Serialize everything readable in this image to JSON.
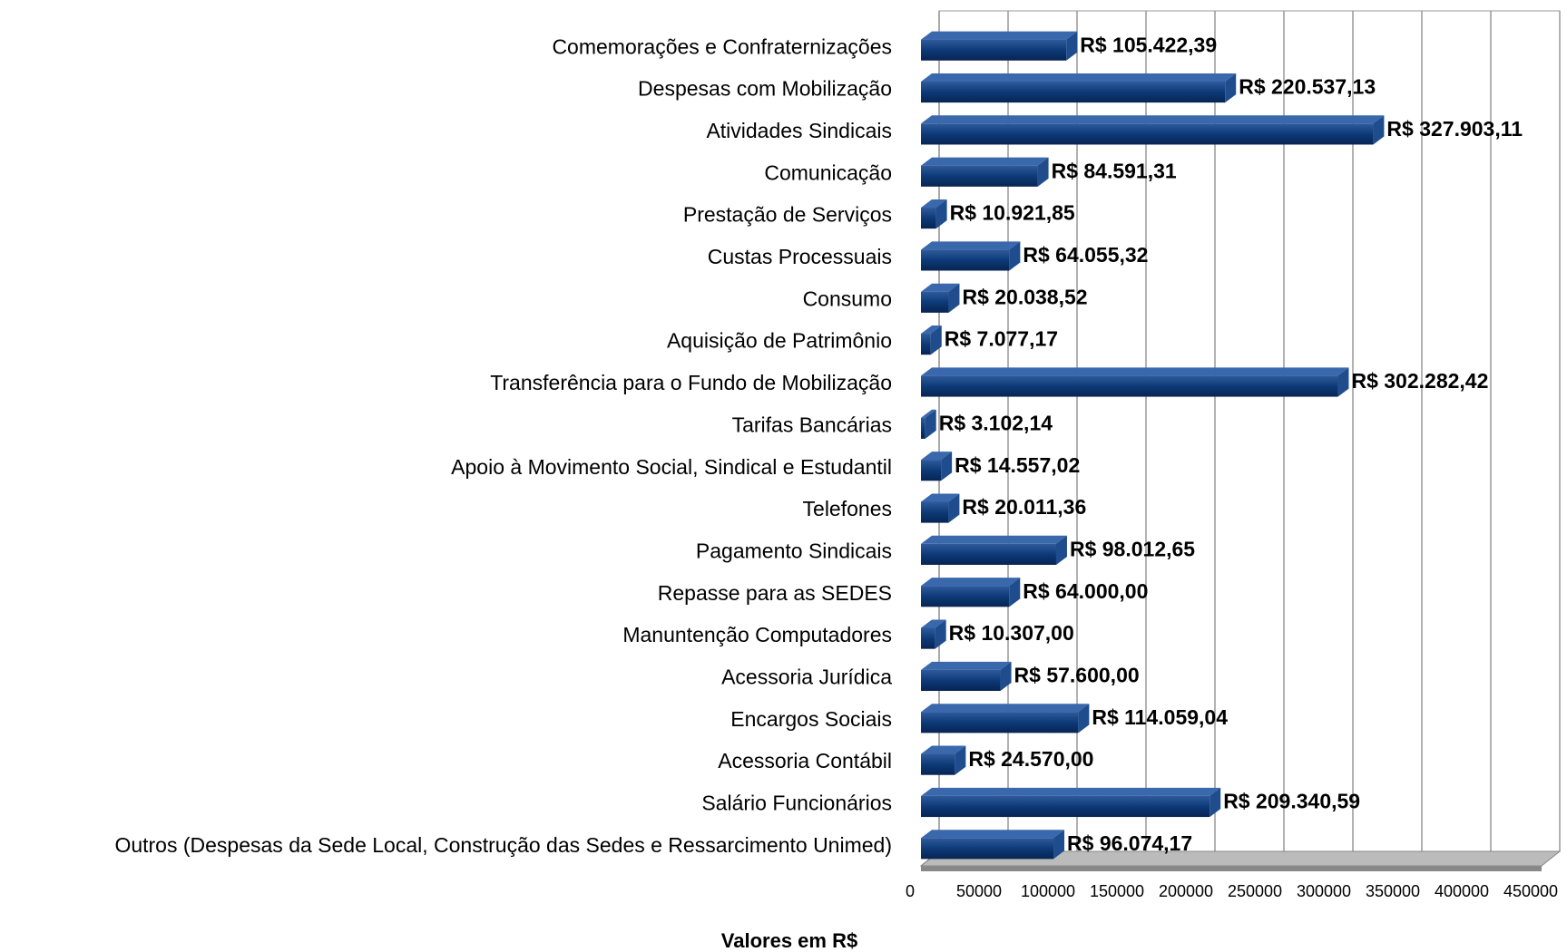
{
  "chart_data": {
    "type": "bar",
    "orientation": "horizontal",
    "x_label": "Valores em R$",
    "categories": [
      "Comemorações e Confraternizações",
      "Despesas com Mobilização",
      "Atividades Sindicais",
      "Comunicação",
      "Prestação de Serviços",
      "Custas Processuais",
      "Consumo",
      "Aquisição de Patrimônio",
      "Transferência para o Fundo de Mobilização",
      "Tarifas Bancárias",
      "Apoio à Movimento Social, Sindical e Estudantil",
      "Telefones",
      "Pagamento Sindicais",
      "Repasse para as SEDES",
      "Manuntenção Computadores",
      "Acessoria Jurídica",
      "Encargos Sociais",
      "Acessoria Contábil",
      "Salário Funcionários",
      "Outros (Despesas da Sede Local, Construção das Sedes e Ressarcimento Unimed)"
    ],
    "values": [
      105422.39,
      220537.13,
      327903.11,
      84591.31,
      10921.85,
      64055.32,
      20038.52,
      7077.17,
      302282.42,
      3102.14,
      14557.02,
      20011.36,
      98012.65,
      64000.0,
      10307.0,
      57600.0,
      114059.04,
      24570.0,
      209340.59,
      96074.17
    ],
    "value_labels": [
      "R$ 105.422,39",
      "R$ 220.537,13",
      "R$ 327.903,11",
      "R$ 84.591,31",
      "R$ 10.921,85",
      "R$ 64.055,32",
      "R$ 20.038,52",
      "R$ 7.077,17",
      "R$ 302.282,42",
      "R$ 3.102,14",
      "R$ 14.557,02",
      "R$ 20.011,36",
      "R$ 98.012,65",
      "R$ 64.000,00",
      "R$ 10.307,00",
      "R$ 57.600,00",
      "R$ 114.059,04",
      "R$ 24.570,00",
      "R$ 209.340,59",
      "R$ 96.074,17"
    ],
    "color": "#0d3a78",
    "xlim": [
      0,
      450000
    ],
    "xticks": [
      0,
      50000,
      100000,
      150000,
      200000,
      250000,
      300000,
      350000,
      400000,
      450000
    ],
    "grid": true
  }
}
